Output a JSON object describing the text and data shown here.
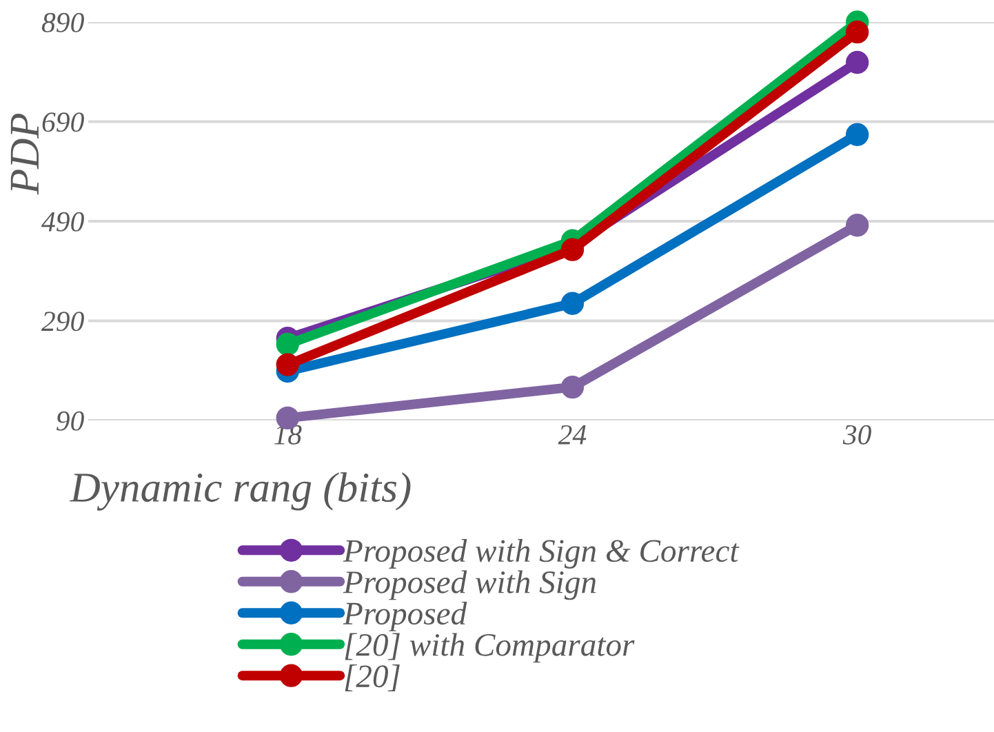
{
  "chart_data": {
    "type": "line",
    "xlabel": "Dynamic rang (bits)",
    "ylabel": "PDP",
    "categories": [
      "18",
      "24",
      "30"
    ],
    "series": [
      {
        "name": "Proposed with Sign & Correct",
        "color": "#7030a0",
        "values": [
          255,
          441,
          809
        ]
      },
      {
        "name": "Proposed with Sign",
        "color": "#8064a2",
        "values": [
          95,
          157,
          482
        ]
      },
      {
        "name": "Proposed",
        "color": "#0070c0",
        "values": [
          189,
          325,
          664
        ]
      },
      {
        "name": "[20] with Comparator",
        "color": "#00b050",
        "values": [
          243,
          451,
          890
        ]
      },
      {
        "name": "[20]",
        "color": "#c00000",
        "values": [
          202,
          433,
          870
        ]
      }
    ],
    "ylim": [
      90,
      890
    ],
    "yticks": [
      90,
      290,
      490,
      690,
      890
    ],
    "grid": "y",
    "legend": "bottom",
    "marker": "circle",
    "line_style": "solid"
  }
}
